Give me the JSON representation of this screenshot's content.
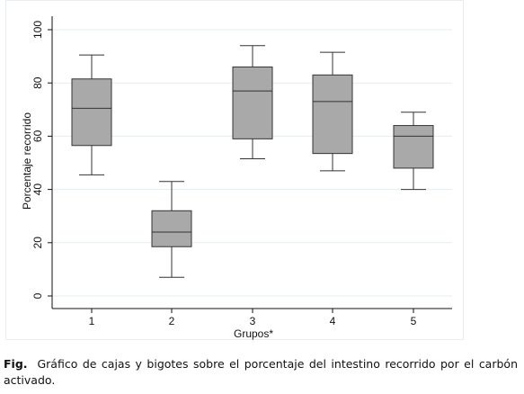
{
  "chart_data": {
    "type": "boxplot",
    "title": "",
    "xlabel": "Grupos*",
    "ylabel": "Porcentaje recorrido",
    "ylim": [
      0,
      100
    ],
    "yticks": [
      0,
      20,
      40,
      60,
      80,
      100
    ],
    "categories": [
      "1",
      "2",
      "3",
      "4",
      "5"
    ],
    "boxes": [
      {
        "category": "1",
        "min": 45.5,
        "q1": 56.5,
        "median": 70.5,
        "q3": 81.5,
        "max": 90.5
      },
      {
        "category": "2",
        "min": 7.0,
        "q1": 18.5,
        "median": 24.0,
        "q3": 32.0,
        "max": 43.0
      },
      {
        "category": "3",
        "min": 51.5,
        "q1": 59.0,
        "median": 77.0,
        "q3": 86.0,
        "max": 94.0
      },
      {
        "category": "4",
        "min": 47.0,
        "q1": 53.5,
        "median": 73.0,
        "q3": 83.0,
        "max": 91.5
      },
      {
        "category": "5",
        "min": 40.0,
        "q1": 48.0,
        "median": 60.0,
        "q3": 64.0,
        "max": 69.0
      }
    ],
    "grid": true,
    "legend": "none",
    "colors": {
      "box_fill": "#a9a9a9",
      "box_stroke": "#333333",
      "grid": "#e3edf2",
      "axis": "#111111"
    }
  },
  "caption": {
    "prefix": "Fig.",
    "text": "Gráfico de cajas y bigotes sobre el porcentaje del intestino recorrido por el carbón activado."
  }
}
